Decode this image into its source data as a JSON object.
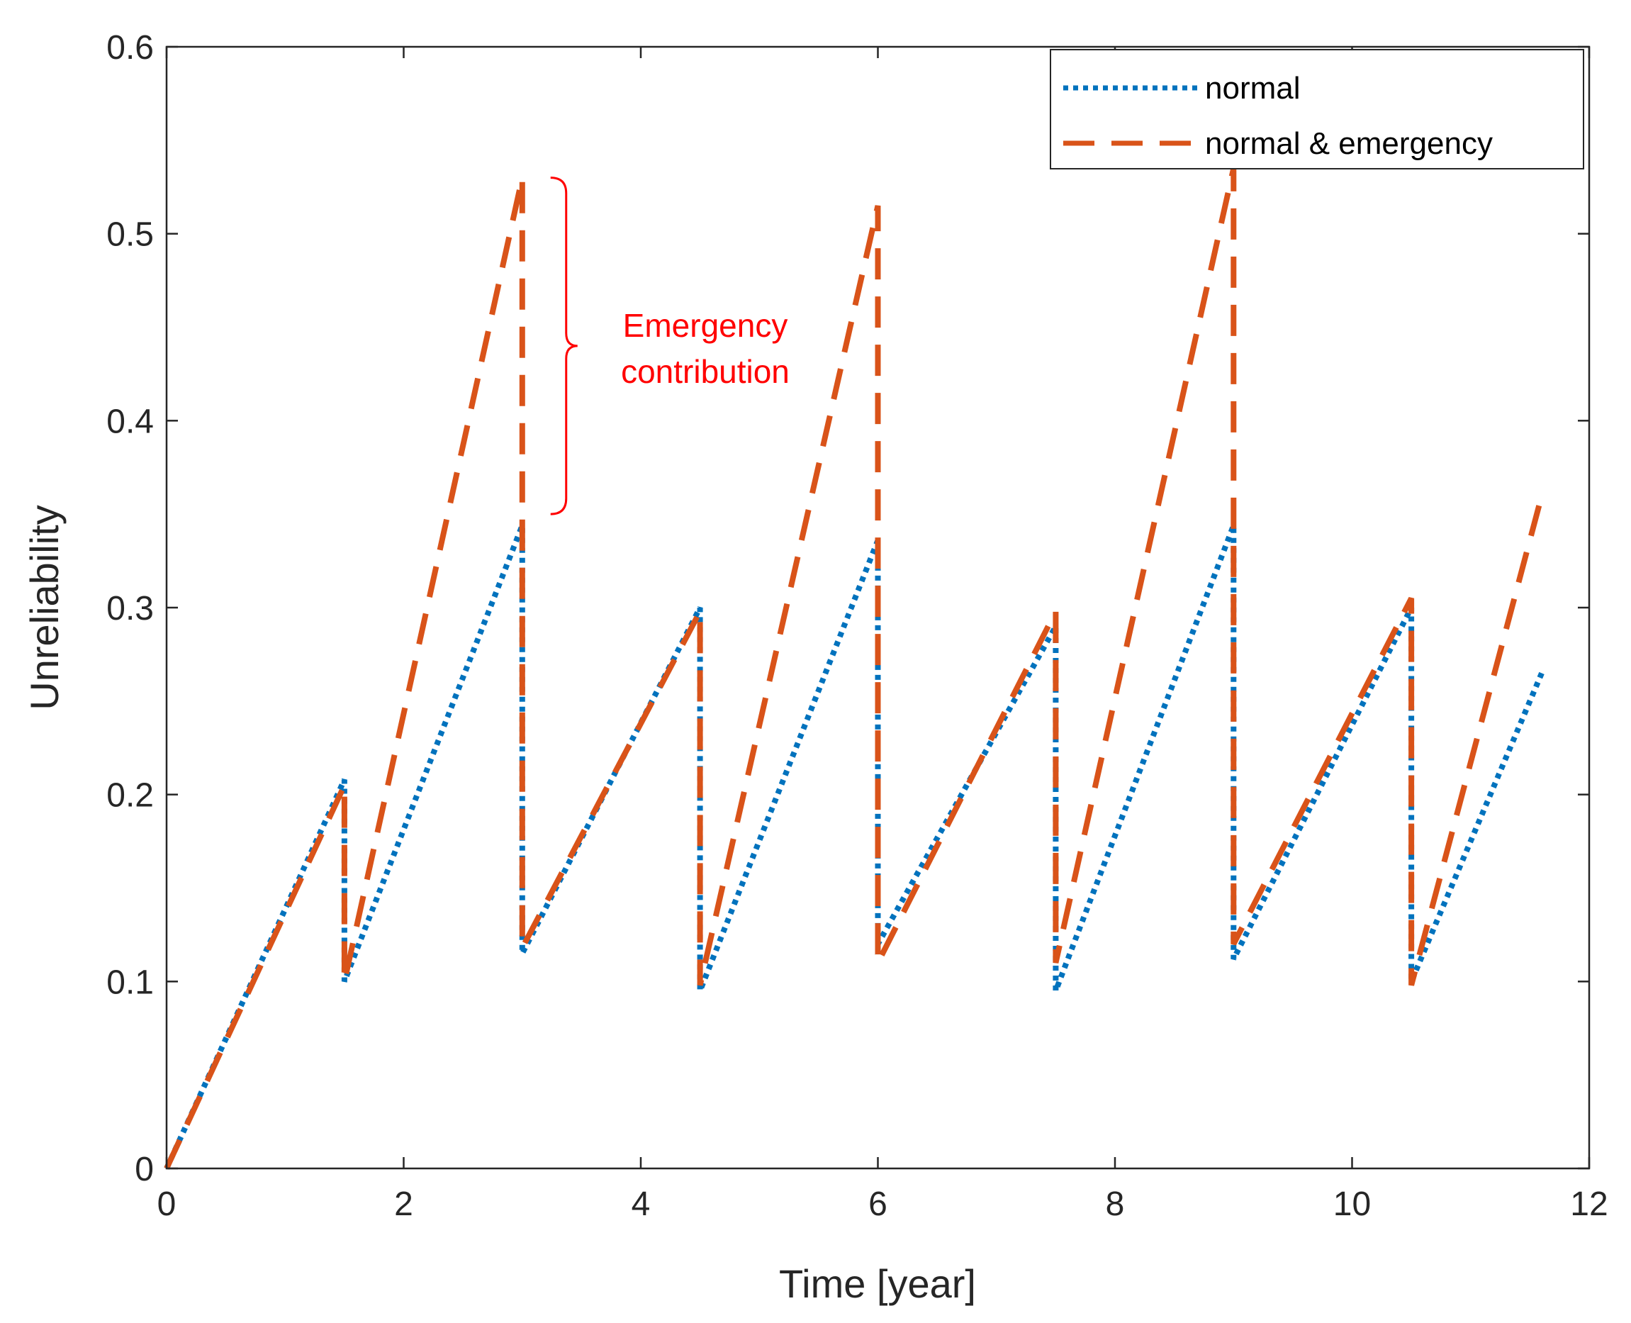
{
  "chart_data": {
    "type": "line",
    "title": "",
    "xlabel": "Time [year]",
    "ylabel": "Unreliability",
    "xlim": [
      0,
      12
    ],
    "ylim": [
      0,
      0.6
    ],
    "xticks": [
      0,
      2,
      4,
      6,
      8,
      10,
      12
    ],
    "xtick_labels": [
      "0",
      "2",
      "4",
      "6",
      "8",
      "10",
      "12"
    ],
    "yticks": [
      0,
      0.1,
      0.2,
      0.3,
      0.4,
      0.5,
      0.6
    ],
    "ytick_labels": [
      "0",
      "0.1",
      "0.2",
      "0.3",
      "0.4",
      "0.5",
      "0.6"
    ],
    "grid": false,
    "legend_position": "top-right",
    "series": [
      {
        "name": "normal",
        "style": "dotted",
        "color": "#0072BD",
        "points": [
          [
            0,
            0
          ],
          [
            1.5,
            0.208
          ],
          [
            1.5,
            0.1
          ],
          [
            3.0,
            0.344
          ],
          [
            3.0,
            0.115
          ],
          [
            4.5,
            0.3
          ],
          [
            4.5,
            0.095
          ],
          [
            6.0,
            0.336
          ],
          [
            6.0,
            0.12
          ],
          [
            7.5,
            0.29
          ],
          [
            7.5,
            0.095
          ],
          [
            9.0,
            0.344
          ],
          [
            9.0,
            0.112
          ],
          [
            10.5,
            0.3
          ],
          [
            10.5,
            0.1
          ],
          [
            11.6,
            0.265
          ]
        ]
      },
      {
        "name": "normal & emergency",
        "style": "dashed",
        "color": "#D95319",
        "points": [
          [
            0,
            0
          ],
          [
            1.5,
            0.205
          ],
          [
            1.5,
            0.1
          ],
          [
            3.0,
            0.53
          ],
          [
            3.0,
            0.118
          ],
          [
            4.5,
            0.298
          ],
          [
            4.5,
            0.098
          ],
          [
            6.0,
            0.515
          ],
          [
            6.0,
            0.11
          ],
          [
            7.5,
            0.298
          ],
          [
            7.5,
            0.11
          ],
          [
            9.0,
            0.535
          ],
          [
            9.0,
            0.12
          ],
          [
            10.5,
            0.305
          ],
          [
            10.5,
            0.098
          ],
          [
            11.6,
            0.36
          ]
        ]
      }
    ],
    "annotations": [
      {
        "lines": [
          "Emergency",
          "contribution"
        ],
        "color": "#FF0000",
        "x": 3.0,
        "y_from": 0.35,
        "y_to": 0.53
      }
    ]
  }
}
